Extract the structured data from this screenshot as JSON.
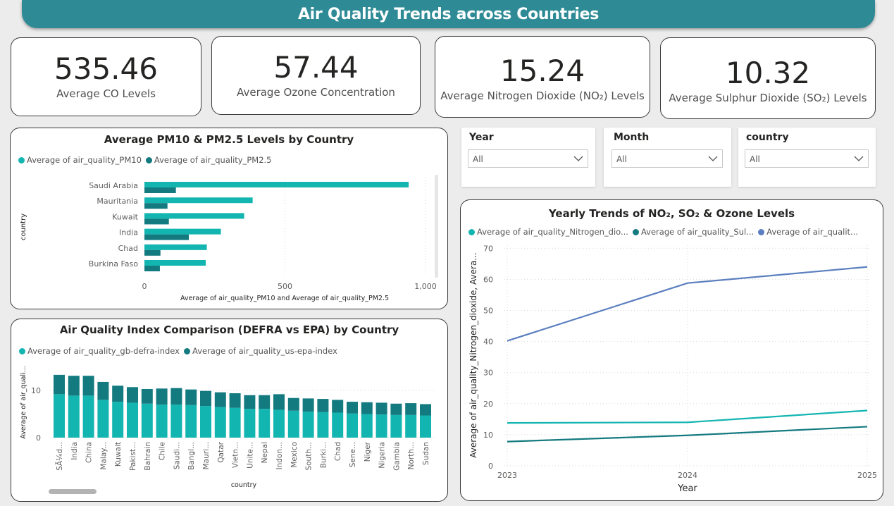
{
  "header": {
    "title": "Air Quality Trends across Countries"
  },
  "kpis": [
    {
      "value": "535.46",
      "label": "Average CO Levels"
    },
    {
      "value": "57.44",
      "label": "Average Ozone Concentration"
    },
    {
      "value": "15.24",
      "label": "Average Nitrogen Dioxide (NO₂) Levels"
    },
    {
      "value": "10.32",
      "label": "Average Sulphur Dioxide (SO₂) Levels"
    }
  ],
  "slicers": [
    {
      "label": "Year",
      "value": "All"
    },
    {
      "label": "Month",
      "value": "All"
    },
    {
      "label": "country",
      "value": "All"
    }
  ],
  "colors": {
    "teal_light": "#13b5b1",
    "teal_dark": "#137a7f",
    "blue": "#5b7fbf",
    "header": "#2e8b96"
  },
  "pm_chart": {
    "title": "Average PM10 & PM2.5 Levels by Country",
    "legend": [
      "Average of air_quality_PM10",
      "Average of air_quality_PM2.5"
    ],
    "ylabel": "country",
    "xlabel": "Average of air_quality_PM10 and Average of air_quality_PM2.5",
    "x_ticks": [
      "0",
      "500",
      "1,000"
    ]
  },
  "aqi_chart": {
    "title": "Air Quality Index Comparison (DEFRA vs EPA) by Country",
    "legend": [
      "Average of air_quality_gb-defra-index",
      "Average of air_quality_us-epa-index"
    ],
    "ylabel": "Average of air_quali...",
    "xlabel": "country",
    "y_ticks": [
      "0",
      "10"
    ]
  },
  "trend_chart": {
    "title": "Yearly Trends of NO₂, SO₂ & Ozone Levels",
    "legend": [
      "Average of air_quality_Nitrogen_dio...",
      "Average of air_quality_Sul...",
      "Average of air_qualit..."
    ],
    "ylabel": "Average of air_quality_Nitrogen_dioxide, Avera...",
    "xlabel": "Year",
    "y_ticks": [
      "0",
      "10",
      "20",
      "30",
      "40",
      "50",
      "60",
      "70"
    ]
  },
  "chart_data": [
    {
      "type": "bar",
      "orientation": "horizontal",
      "title": "Average PM10 & PM2.5 Levels by Country",
      "categories": [
        "Saudi Arabia",
        "Mauritania",
        "Kuwait",
        "India",
        "Chad",
        "Burkina Faso"
      ],
      "series": [
        {
          "name": "Average of air_quality_PM10",
          "values": [
            940,
            385,
            355,
            272,
            222,
            218
          ]
        },
        {
          "name": "Average of air_quality_PM2.5",
          "values": [
            112,
            82,
            87,
            158,
            57,
            55
          ]
        }
      ],
      "xlim": [
        0,
        1050
      ],
      "xlabel": "Average of air_quality_PM10 and Average of air_quality_PM2.5",
      "ylabel": "country",
      "legend": "top-left",
      "grid": true
    },
    {
      "type": "bar",
      "stacked": true,
      "title": "Air Quality Index Comparison (DEFRA vs EPA) by Country",
      "categories": [
        "SÃ¼d...",
        "India",
        "China",
        "Malay...",
        "Kuwait",
        "Pakist...",
        "Bahrain",
        "Chile",
        "Saudi...",
        "Bangl...",
        "Mauri...",
        "Qatar",
        "Vietn...",
        "Unite...",
        "Nepal",
        "Indon...",
        "Mexico",
        "South...",
        "Burki...",
        "Chad",
        "Sene...",
        "Niger",
        "Nigeria",
        "Gambia",
        "North...",
        "Sudan"
      ],
      "series": [
        {
          "name": "Average of air_quality_gb-defra-index",
          "values": [
            9.2,
            8.9,
            8.9,
            8.0,
            7.6,
            7.4,
            7.2,
            7.0,
            7.0,
            6.9,
            6.7,
            6.5,
            6.3,
            6.1,
            6.1,
            5.9,
            5.7,
            5.5,
            5.4,
            5.3,
            5.1,
            5.0,
            4.9,
            4.8,
            4.8,
            4.7
          ]
        },
        {
          "name": "Average of air_quality_us-epa-index",
          "values": [
            4.1,
            4.2,
            4.2,
            3.8,
            3.4,
            3.3,
            3.1,
            3.4,
            3.5,
            3.3,
            3.2,
            3.1,
            3.1,
            2.9,
            2.9,
            3.3,
            2.7,
            2.8,
            2.8,
            2.7,
            2.5,
            2.5,
            2.5,
            2.4,
            2.5,
            2.4
          ]
        }
      ],
      "ylim": [
        0,
        14
      ],
      "xlabel": "country",
      "ylabel": "Average of air_quali...",
      "legend": "top-left"
    },
    {
      "type": "line",
      "title": "Yearly Trends of NO₂, SO₂ & Ozone Levels",
      "x": [
        "2023",
        "2024",
        "2025"
      ],
      "series": [
        {
          "name": "Average of air_quality_Nitrogen_dio...",
          "values": [
            13.8,
            14.0,
            17.8
          ]
        },
        {
          "name": "Average of air_quality_Sul...",
          "values": [
            7.8,
            9.8,
            12.6
          ]
        },
        {
          "name": "Average of air_qualit...",
          "values": [
            40.2,
            58.8,
            64.0
          ]
        }
      ],
      "ylim": [
        0,
        70
      ],
      "xlabel": "Year",
      "ylabel": "Average of air_quality_Nitrogen_dioxide, Avera...",
      "legend": "top-left",
      "grid": true
    }
  ]
}
